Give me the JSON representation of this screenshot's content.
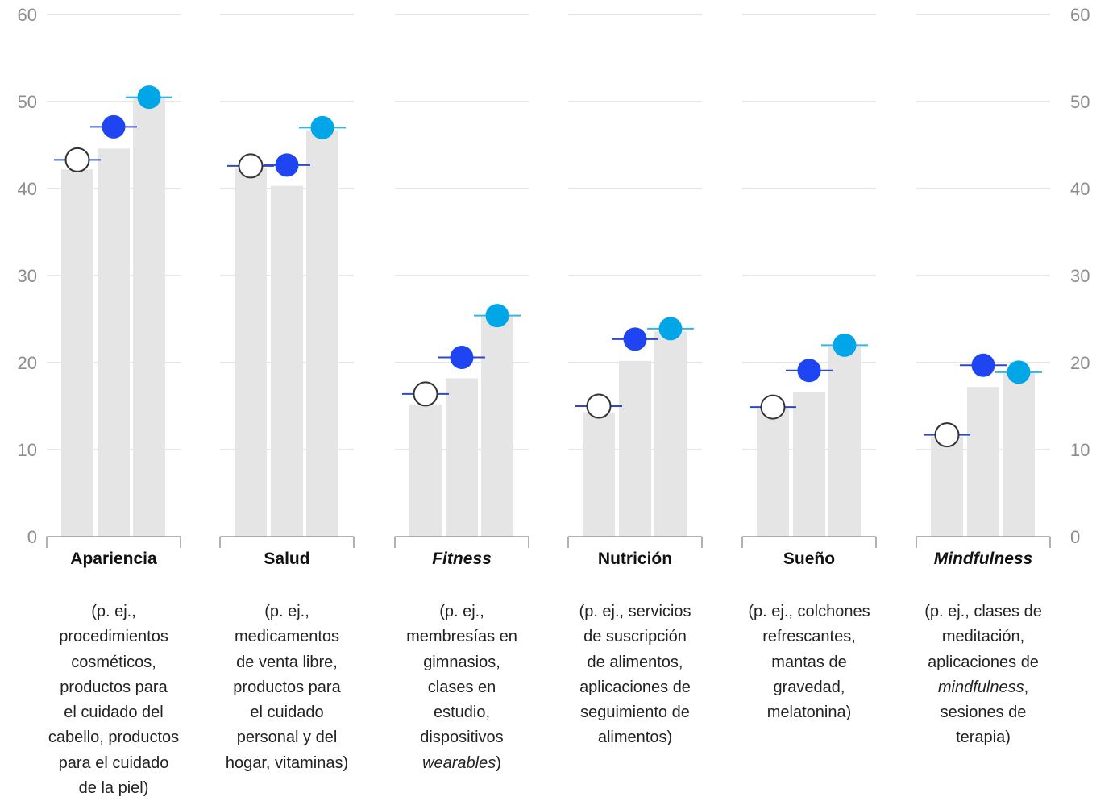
{
  "chart_data": {
    "type": "bar",
    "y_ticks": [
      "0",
      "10",
      "20",
      "30",
      "40",
      "50",
      "60"
    ],
    "ylim": [
      0,
      60
    ],
    "grid": true,
    "right_axis_labels": true,
    "colors": {
      "bar": "#e5e5e5",
      "gridline": "#e6e6e6",
      "axis": "#999999",
      "marker_outline": "#333333",
      "marker_open_fill": "#ffffff",
      "marker_mid": "#1f44f2",
      "marker_light": "#00a6e8",
      "marker_line": "#2b49c9",
      "marker_line_light": "#2bb8ee"
    },
    "categories": [
      {
        "title": "Apariencia",
        "title_italic": false,
        "desc_lines": [
          [
            "(p. ej.,"
          ],
          [
            "procedimientos"
          ],
          [
            "cosméticos,"
          ],
          [
            "productos para"
          ],
          [
            "el cuidado del"
          ],
          [
            "cabello, productos"
          ],
          [
            "para el cuidado"
          ],
          [
            "de la piel)"
          ]
        ],
        "bars": [
          42.2,
          44.6,
          50.4
        ],
        "markers": [
          43.3,
          47.1,
          50.5
        ]
      },
      {
        "title": "Salud",
        "title_italic": false,
        "desc_lines": [
          [
            "(p. ej.,"
          ],
          [
            "medicamentos"
          ],
          [
            "de venta libre,"
          ],
          [
            "productos para"
          ],
          [
            "el cuidado"
          ],
          [
            "personal y del"
          ],
          [
            "hogar, vitaminas)"
          ]
        ],
        "bars": [
          42.3,
          40.3,
          46.7
        ],
        "markers": [
          42.6,
          42.7,
          47.0
        ]
      },
      {
        "title": "Fitness",
        "title_italic": true,
        "desc_lines": [
          [
            "(p. ej.,"
          ],
          [
            "membresías en"
          ],
          [
            "gimnasios,"
          ],
          [
            "clases en"
          ],
          [
            "estudio,"
          ],
          [
            "dispositivos"
          ],
          [
            "",
            "wearables",
            ")"
          ]
        ],
        "bars": [
          15.2,
          18.2,
          25.3
        ],
        "markers": [
          16.4,
          20.6,
          25.4
        ]
      },
      {
        "title": "Nutrición",
        "title_italic": false,
        "desc_lines": [
          [
            "(p. ej., servicios"
          ],
          [
            "de suscripción"
          ],
          [
            "de alimentos,"
          ],
          [
            "aplicaciones de"
          ],
          [
            "seguimiento de"
          ],
          [
            "alimentos)"
          ]
        ],
        "bars": [
          14.3,
          20.2,
          23.6
        ],
        "markers": [
          15.0,
          22.7,
          23.9
        ]
      },
      {
        "title": "Sueño",
        "title_italic": false,
        "desc_lines": [
          [
            "(p. ej., colchones"
          ],
          [
            "refrescantes,"
          ],
          [
            "mantas de"
          ],
          [
            "gravedad,"
          ],
          [
            "melatonina)"
          ]
        ],
        "bars": [
          14.7,
          16.6,
          21.8
        ],
        "markers": [
          14.9,
          19.1,
          22.0
        ]
      },
      {
        "title": "Mindfulness",
        "title_italic": true,
        "desc_lines": [
          [
            "(p. ej., clases de"
          ],
          [
            "meditación,"
          ],
          [
            "aplicaciones de"
          ],
          [
            "",
            "mindfulness",
            ","
          ],
          [
            "sesiones de"
          ],
          [
            "terapia)"
          ]
        ],
        "bars": [
          11.5,
          17.2,
          19.0
        ],
        "markers": [
          11.7,
          19.7,
          18.9
        ]
      }
    ]
  }
}
